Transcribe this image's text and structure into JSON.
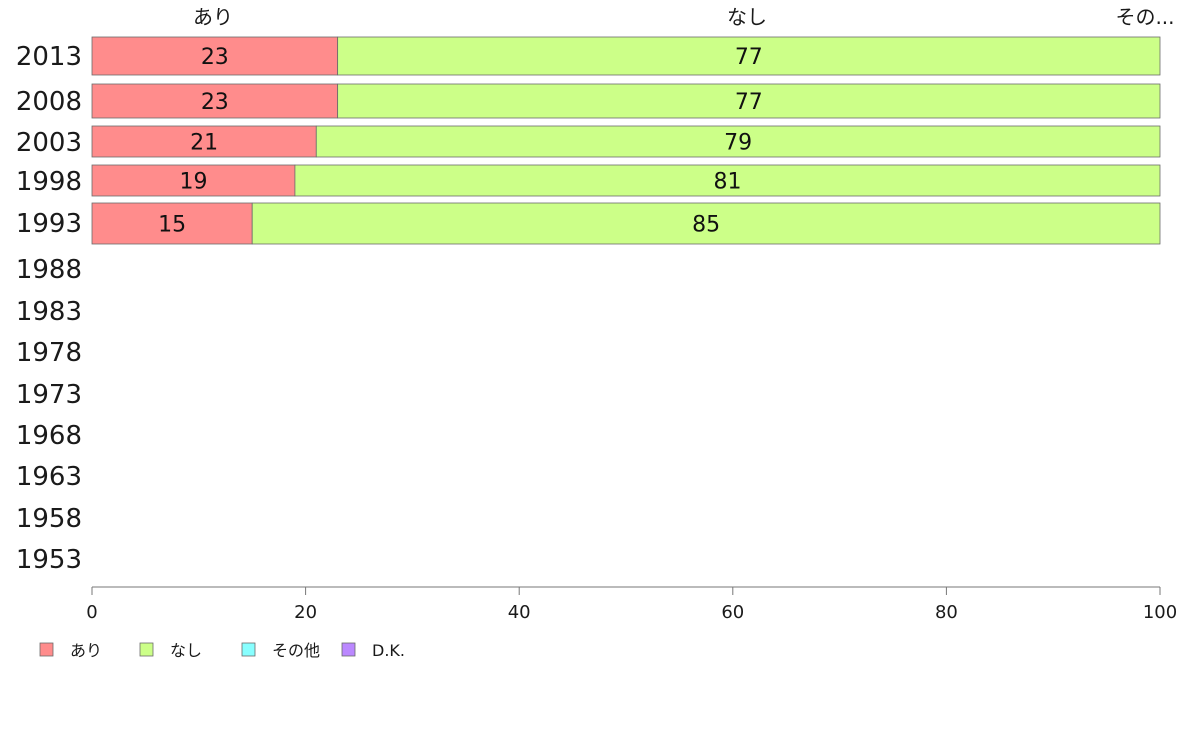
{
  "chart_data": {
    "type": "bar",
    "orientation": "horizontal",
    "stacked": true,
    "categories": [
      "2013",
      "2008",
      "2003",
      "1998",
      "1993",
      "1988",
      "1983",
      "1978",
      "1973",
      "1968",
      "1963",
      "1958",
      "1953"
    ],
    "series": [
      {
        "name": "あり",
        "color": "#ff8c8c",
        "values": [
          23,
          23,
          21,
          19,
          15,
          null,
          null,
          null,
          null,
          null,
          null,
          null,
          null
        ]
      },
      {
        "name": "なし",
        "color": "#ccff88",
        "values": [
          77,
          77,
          79,
          81,
          85,
          null,
          null,
          null,
          null,
          null,
          null,
          null,
          null
        ]
      },
      {
        "name": "その他",
        "color": "#88ffff",
        "values": [
          0,
          0,
          0,
          0,
          0,
          null,
          null,
          null,
          null,
          null,
          null,
          null,
          null
        ]
      },
      {
        "name": "D.K.",
        "color": "#bb88ff",
        "values": [
          0,
          0,
          0,
          0,
          0,
          null,
          null,
          null,
          null,
          null,
          null,
          null,
          null
        ]
      }
    ],
    "data_labels": [
      [
        "23",
        "77"
      ],
      [
        "23",
        "77"
      ],
      [
        "21",
        "79"
      ],
      [
        "19",
        "81"
      ],
      [
        "15",
        "85"
      ]
    ],
    "top_labels": [
      "あり",
      "なし",
      "その..."
    ],
    "xlim": [
      0,
      100
    ],
    "xticks": [
      "0",
      "20",
      "40",
      "60",
      "80",
      "100"
    ],
    "legend_position": "bottom-left",
    "grid": false
  }
}
